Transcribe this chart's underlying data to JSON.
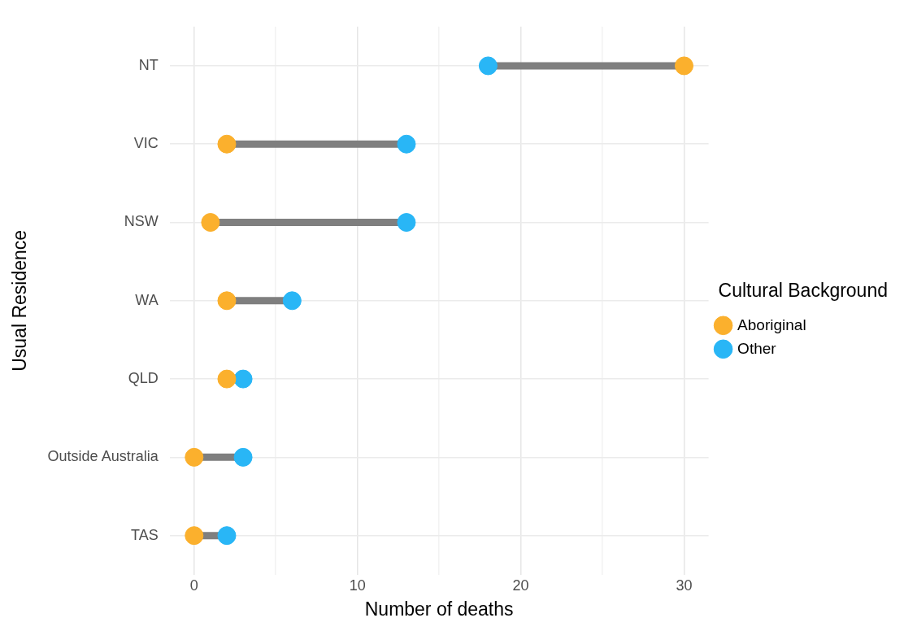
{
  "chart_data": {
    "type": "scatter",
    "orientation": "horizontal",
    "categories": [
      "NT",
      "VIC",
      "NSW",
      "WA",
      "QLD",
      "Outside Australia",
      "TAS"
    ],
    "series": [
      {
        "name": "Aboriginal",
        "color": "#fbb02d",
        "values": [
          30,
          2,
          1,
          2,
          2,
          0,
          0
        ]
      },
      {
        "name": "Other",
        "color": "#29b6f6",
        "values": [
          18,
          13,
          13,
          6,
          3,
          3,
          2
        ]
      }
    ],
    "xlabel": "Number of deaths",
    "ylabel": "Usual Residence",
    "legend_title": "Cultural Background",
    "xlim": [
      -1.5,
      31.5
    ],
    "xticks": [
      0,
      {
        "value": 5,
        "label": null
      },
      10,
      {
        "value": 15,
        "label": null
      },
      20,
      {
        "value": 25,
        "label": null
      },
      30
    ],
    "grid": true,
    "legend": "right",
    "marker": "circle"
  }
}
